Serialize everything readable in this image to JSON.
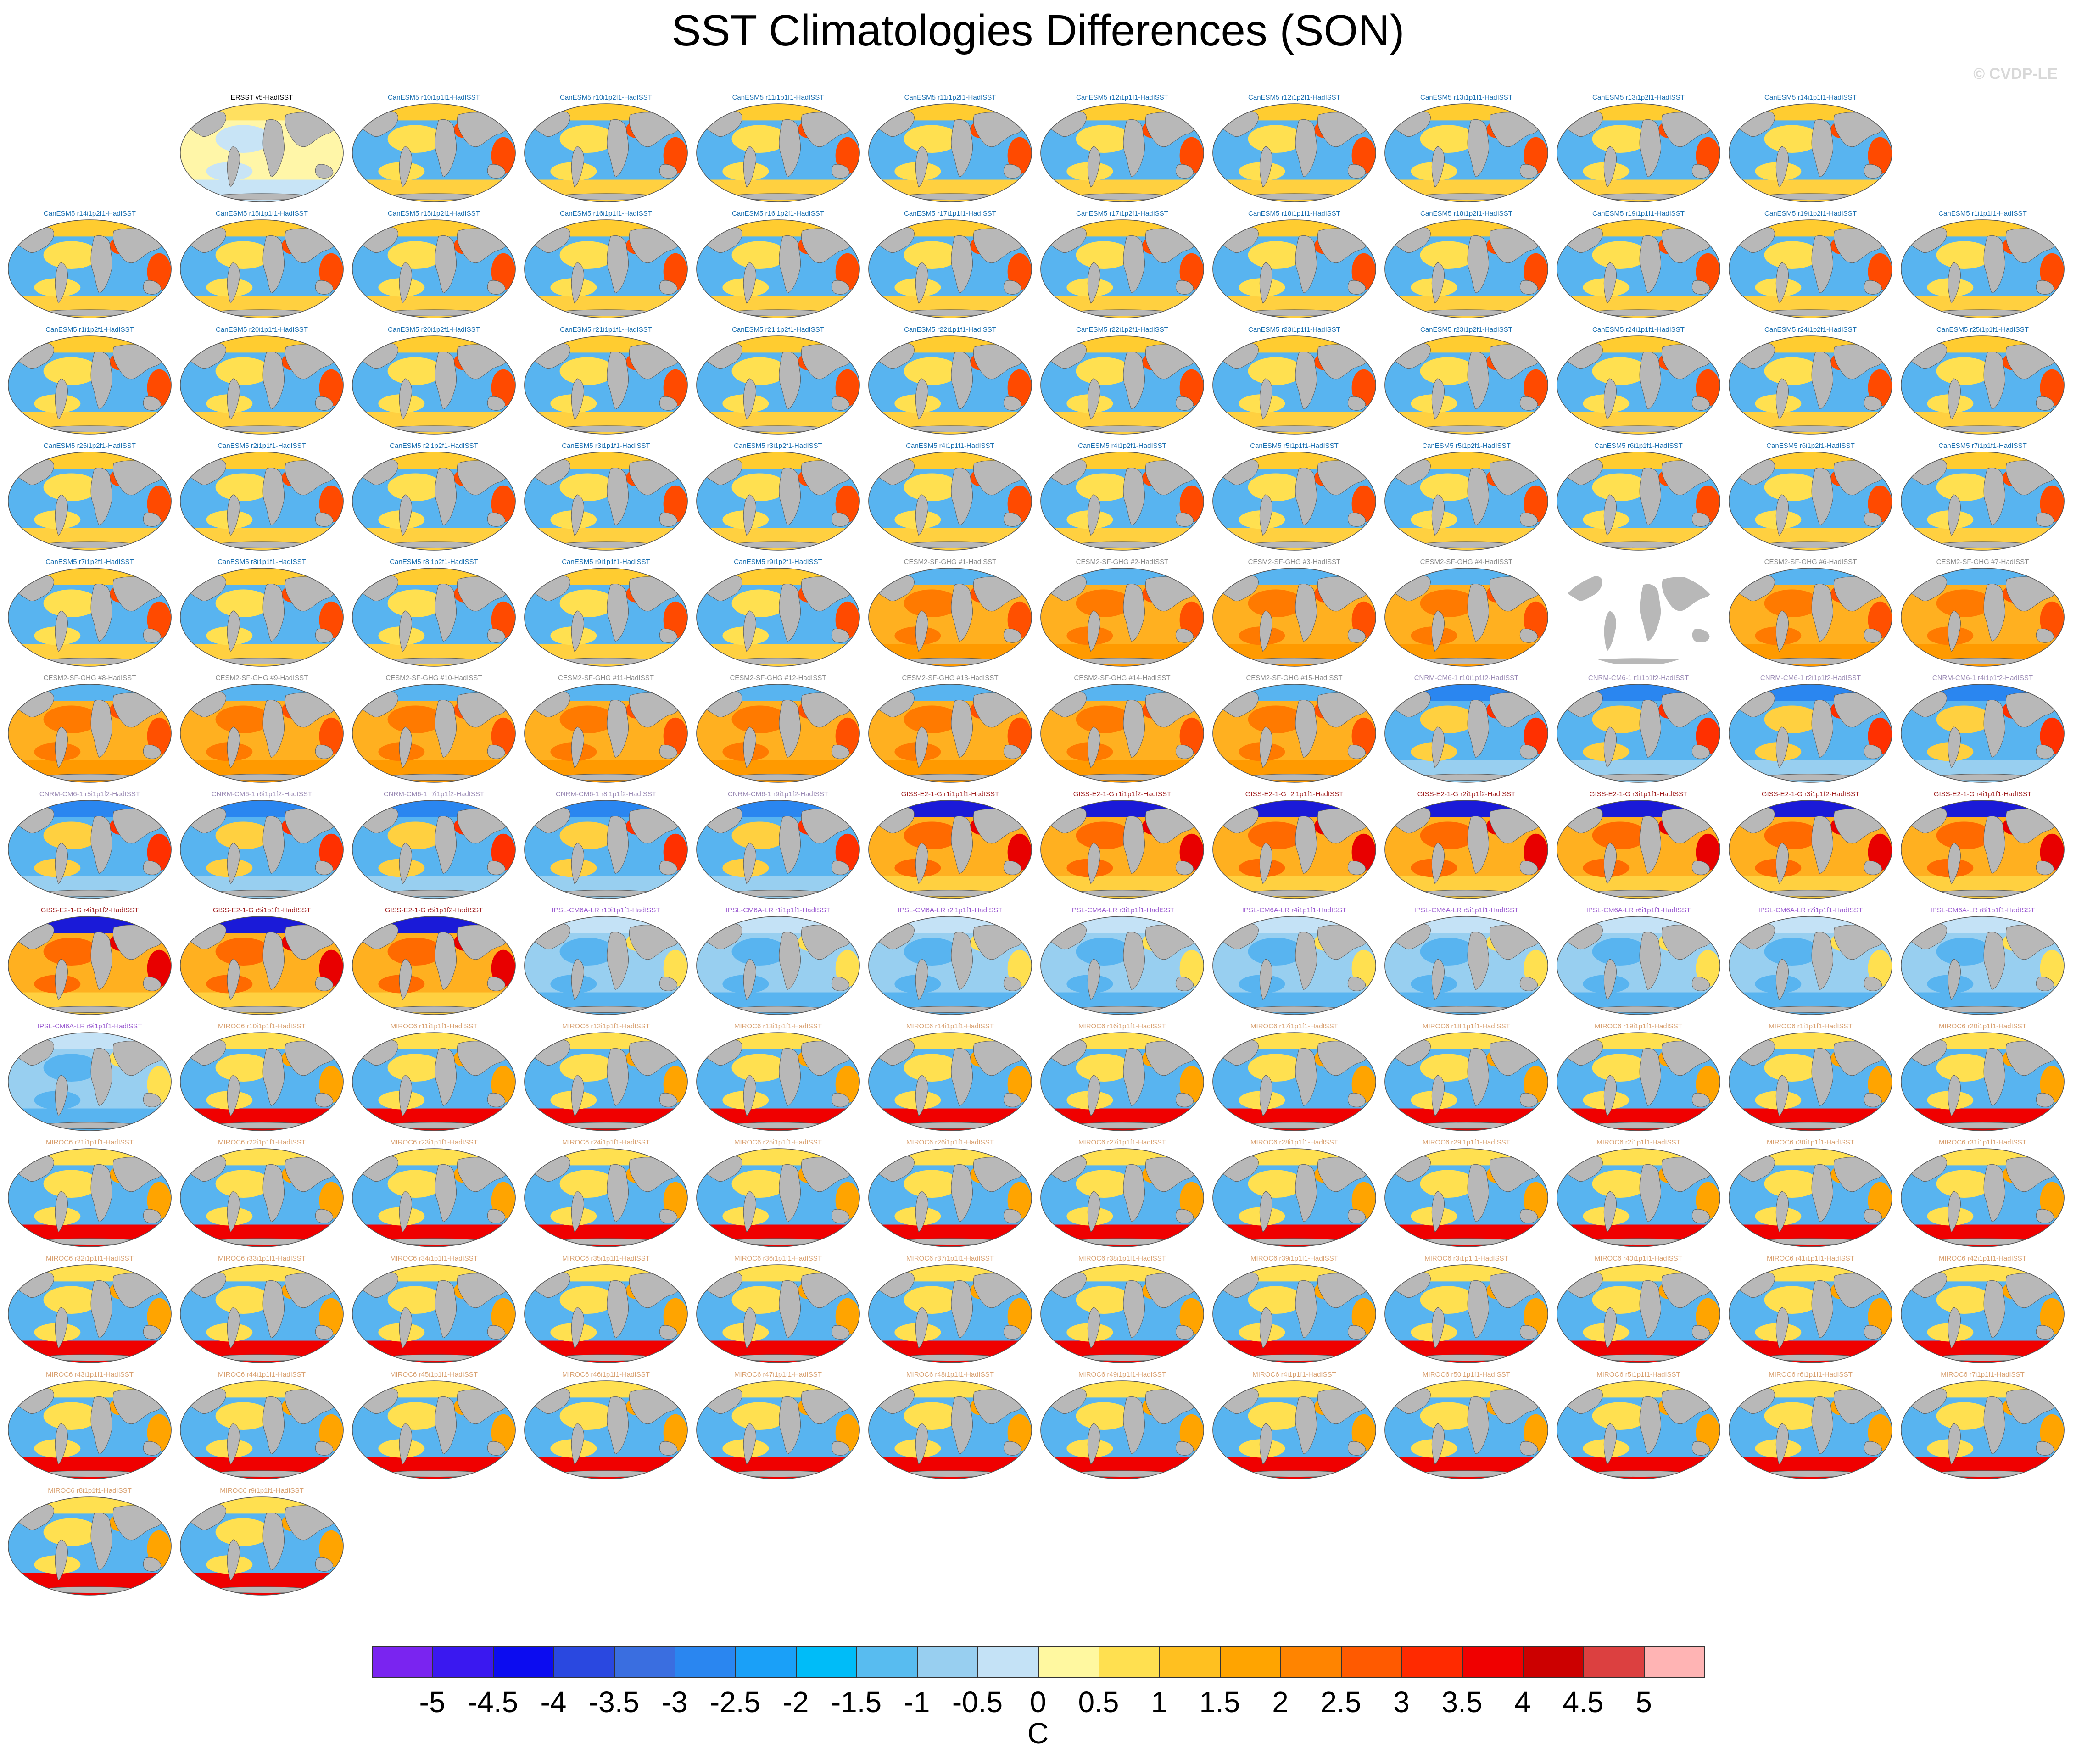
{
  "title": "SST Climatologies Differences (SON)",
  "watermark": "© CVDP-LE",
  "chart_data": {
    "type": "heatmap",
    "title": "SST Climatologies Differences (SON)",
    "units": "C",
    "description_variable": "Sea surface temperature climatology difference vs HadISST, Sep-Oct-Nov",
    "colorbar": {
      "ticks": [
        "-5",
        "-4.5",
        "-4",
        "-3.5",
        "-3",
        "-2.5",
        "-2",
        "-1.5",
        "-1",
        "-0.5",
        "0",
        "0.5",
        "1",
        "1.5",
        "2",
        "2.5",
        "3",
        "3.5",
        "4",
        "4.5",
        "5"
      ],
      "colors": [
        "#7a24f0",
        "#3a18f0",
        "#0c0cf0",
        "#2a48e0",
        "#3a6ee0",
        "#2a86f0",
        "#1aa0f8",
        "#00bcf8",
        "#58bcf0",
        "#98cff0",
        "#c4e2f6",
        "#fff8a0",
        "#ffe050",
        "#ffc020",
        "#ffa400",
        "#ff8400",
        "#ff5a00",
        "#ff2a00",
        "#f00000",
        "#cc0000",
        "#dc4040",
        "#ffb4b4"
      ]
    },
    "panels": [
      {
        "label": "ERSST v5-HadISST",
        "group": "obs"
      },
      {
        "label": "CanESM5 r10i1p1f1-HadISST",
        "group": "CanESM5"
      },
      {
        "label": "CanESM5 r10i1p2f1-HadISST",
        "group": "CanESM5"
      },
      {
        "label": "CanESM5 r11i1p1f1-HadISST",
        "group": "CanESM5"
      },
      {
        "label": "CanESM5 r11i1p2f1-HadISST",
        "group": "CanESM5"
      },
      {
        "label": "CanESM5 r12i1p1f1-HadISST",
        "group": "CanESM5"
      },
      {
        "label": "CanESM5 r12i1p2f1-HadISST",
        "group": "CanESM5"
      },
      {
        "label": "CanESM5 r13i1p1f1-HadISST",
        "group": "CanESM5"
      },
      {
        "label": "CanESM5 r13i1p2f1-HadISST",
        "group": "CanESM5"
      },
      {
        "label": "CanESM5 r14i1p1f1-HadISST",
        "group": "CanESM5"
      },
      {
        "label": "CanESM5 r14i1p2f1-HadISST",
        "group": "CanESM5"
      },
      {
        "label": "CanESM5 r15i1p1f1-HadISST",
        "group": "CanESM5"
      },
      {
        "label": "CanESM5 r15i1p2f1-HadISST",
        "group": "CanESM5"
      },
      {
        "label": "CanESM5 r16i1p1f1-HadISST",
        "group": "CanESM5"
      },
      {
        "label": "CanESM5 r16i1p2f1-HadISST",
        "group": "CanESM5"
      },
      {
        "label": "CanESM5 r17i1p1f1-HadISST",
        "group": "CanESM5"
      },
      {
        "label": "CanESM5 r17i1p2f1-HadISST",
        "group": "CanESM5"
      },
      {
        "label": "CanESM5 r18i1p1f1-HadISST",
        "group": "CanESM5"
      },
      {
        "label": "CanESM5 r18i1p2f1-HadISST",
        "group": "CanESM5"
      },
      {
        "label": "CanESM5 r19i1p1f1-HadISST",
        "group": "CanESM5"
      },
      {
        "label": "CanESM5 r19i1p2f1-HadISST",
        "group": "CanESM5"
      },
      {
        "label": "CanESM5 r1i1p1f1-HadISST",
        "group": "CanESM5"
      },
      {
        "label": "CanESM5 r1i1p2f1-HadISST",
        "group": "CanESM5"
      },
      {
        "label": "CanESM5 r20i1p1f1-HadISST",
        "group": "CanESM5"
      },
      {
        "label": "CanESM5 r20i1p2f1-HadISST",
        "group": "CanESM5"
      },
      {
        "label": "CanESM5 r21i1p1f1-HadISST",
        "group": "CanESM5"
      },
      {
        "label": "CanESM5 r21i1p2f1-HadISST",
        "group": "CanESM5"
      },
      {
        "label": "CanESM5 r22i1p1f1-HadISST",
        "group": "CanESM5"
      },
      {
        "label": "CanESM5 r22i1p2f1-HadISST",
        "group": "CanESM5"
      },
      {
        "label": "CanESM5 r23i1p1f1-HadISST",
        "group": "CanESM5"
      },
      {
        "label": "CanESM5 r23i1p2f1-HadISST",
        "group": "CanESM5"
      },
      {
        "label": "CanESM5 r24i1p1f1-HadISST",
        "group": "CanESM5"
      },
      {
        "label": "CanESM5 r24i1p2f1-HadISST",
        "group": "CanESM5"
      },
      {
        "label": "CanESM5 r25i1p1f1-HadISST",
        "group": "CanESM5"
      },
      {
        "label": "CanESM5 r25i1p2f1-HadISST",
        "group": "CanESM5"
      },
      {
        "label": "CanESM5 r2i1p1f1-HadISST",
        "group": "CanESM5"
      },
      {
        "label": "CanESM5 r2i1p2f1-HadISST",
        "group": "CanESM5"
      },
      {
        "label": "CanESM5 r3i1p1f1-HadISST",
        "group": "CanESM5"
      },
      {
        "label": "CanESM5 r3i1p2f1-HadISST",
        "group": "CanESM5"
      },
      {
        "label": "CanESM5 r4i1p1f1-HadISST",
        "group": "CanESM5"
      },
      {
        "label": "CanESM5 r4i1p2f1-HadISST",
        "group": "CanESM5"
      },
      {
        "label": "CanESM5 r5i1p1f1-HadISST",
        "group": "CanESM5"
      },
      {
        "label": "CanESM5 r5i1p2f1-HadISST",
        "group": "CanESM5"
      },
      {
        "label": "CanESM5 r6i1p1f1-HadISST",
        "group": "CanESM5"
      },
      {
        "label": "CanESM5 r6i1p2f1-HadISST",
        "group": "CanESM5"
      },
      {
        "label": "CanESM5 r7i1p1f1-HadISST",
        "group": "CanESM5"
      },
      {
        "label": "CanESM5 r7i1p2f1-HadISST",
        "group": "CanESM5"
      },
      {
        "label": "CanESM5 r8i1p1f1-HadISST",
        "group": "CanESM5"
      },
      {
        "label": "CanESM5 r8i1p2f1-HadISST",
        "group": "CanESM5"
      },
      {
        "label": "CanESM5 r9i1p1f1-HadISST",
        "group": "CanESM5"
      },
      {
        "label": "CanESM5 r9i1p2f1-HadISST",
        "group": "CanESM5"
      },
      {
        "label": "CESM2-SF-GHG #1-HadISST",
        "group": "CESM2"
      },
      {
        "label": "CESM2-SF-GHG #2-HadISST",
        "group": "CESM2"
      },
      {
        "label": "CESM2-SF-GHG #3-HadISST",
        "group": "CESM2"
      },
      {
        "label": "CESM2-SF-GHG #4-HadISST",
        "group": "CESM2"
      },
      {
        "label": "",
        "group": "blank"
      },
      {
        "label": "CESM2-SF-GHG #6-HadISST",
        "group": "CESM2"
      },
      {
        "label": "CESM2-SF-GHG #7-HadISST",
        "group": "CESM2"
      },
      {
        "label": "CESM2-SF-GHG #8-HadISST",
        "group": "CESM2"
      },
      {
        "label": "CESM2-SF-GHG #9-HadISST",
        "group": "CESM2"
      },
      {
        "label": "CESM2-SF-GHG #10-HadISST",
        "group": "CESM2"
      },
      {
        "label": "CESM2-SF-GHG #11-HadISST",
        "group": "CESM2"
      },
      {
        "label": "CESM2-SF-GHG #12-HadISST",
        "group": "CESM2"
      },
      {
        "label": "CESM2-SF-GHG #13-HadISST",
        "group": "CESM2"
      },
      {
        "label": "CESM2-SF-GHG #14-HadISST",
        "group": "CESM2"
      },
      {
        "label": "CESM2-SF-GHG #15-HadISST",
        "group": "CESM2"
      },
      {
        "label": "CNRM-CM6-1 r10i1p1f2-HadISST",
        "group": "CNRM"
      },
      {
        "label": "CNRM-CM6-1 r1i1p1f2-HadISST",
        "group": "CNRM"
      },
      {
        "label": "CNRM-CM6-1 r2i1p1f2-HadISST",
        "group": "CNRM"
      },
      {
        "label": "CNRM-CM6-1 r4i1p1f2-HadISST",
        "group": "CNRM"
      },
      {
        "label": "CNRM-CM6-1 r5i1p1f2-HadISST",
        "group": "CNRM"
      },
      {
        "label": "CNRM-CM6-1 r6i1p1f2-HadISST",
        "group": "CNRM"
      },
      {
        "label": "CNRM-CM6-1 r7i1p1f2-HadISST",
        "group": "CNRM"
      },
      {
        "label": "CNRM-CM6-1 r8i1p1f2-HadISST",
        "group": "CNRM"
      },
      {
        "label": "CNRM-CM6-1 r9i1p1f2-HadISST",
        "group": "CNRM"
      },
      {
        "label": "GISS-E2-1-G r1i1p1f1-HadISST",
        "group": "GISS"
      },
      {
        "label": "GISS-E2-1-G r1i1p1f2-HadISST",
        "group": "GISS"
      },
      {
        "label": "GISS-E2-1-G r2i1p1f1-HadISST",
        "group": "GISS"
      },
      {
        "label": "GISS-E2-1-G r2i1p1f2-HadISST",
        "group": "GISS"
      },
      {
        "label": "GISS-E2-1-G r3i1p1f1-HadISST",
        "group": "GISS"
      },
      {
        "label": "GISS-E2-1-G r3i1p1f2-HadISST",
        "group": "GISS"
      },
      {
        "label": "GISS-E2-1-G r4i1p1f1-HadISST",
        "group": "GISS"
      },
      {
        "label": "GISS-E2-1-G r4i1p1f2-HadISST",
        "group": "GISS"
      },
      {
        "label": "GISS-E2-1-G r5i1p1f1-HadISST",
        "group": "GISS"
      },
      {
        "label": "GISS-E2-1-G r5i1p1f2-HadISST",
        "group": "GISS"
      },
      {
        "label": "IPSL-CM6A-LR r10i1p1f1-HadISST",
        "group": "IPSL"
      },
      {
        "label": "IPSL-CM6A-LR r1i1p1f1-HadISST",
        "group": "IPSL"
      },
      {
        "label": "IPSL-CM6A-LR r2i1p1f1-HadISST",
        "group": "IPSL"
      },
      {
        "label": "IPSL-CM6A-LR r3i1p1f1-HadISST",
        "group": "IPSL"
      },
      {
        "label": "IPSL-CM6A-LR r4i1p1f1-HadISST",
        "group": "IPSL"
      },
      {
        "label": "IPSL-CM6A-LR r5i1p1f1-HadISST",
        "group": "IPSL"
      },
      {
        "label": "IPSL-CM6A-LR r6i1p1f1-HadISST",
        "group": "IPSL"
      },
      {
        "label": "IPSL-CM6A-LR r7i1p1f1-HadISST",
        "group": "IPSL"
      },
      {
        "label": "IPSL-CM6A-LR r8i1p1f1-HadISST",
        "group": "IPSL"
      },
      {
        "label": "IPSL-CM6A-LR r9i1p1f1-HadISST",
        "group": "IPSL"
      },
      {
        "label": "MIROC6 r10i1p1f1-HadISST",
        "group": "MIROC6"
      },
      {
        "label": "MIROC6 r11i1p1f1-HadISST",
        "group": "MIROC6"
      },
      {
        "label": "MIROC6 r12i1p1f1-HadISST",
        "group": "MIROC6"
      },
      {
        "label": "MIROC6 r13i1p1f1-HadISST",
        "group": "MIROC6"
      },
      {
        "label": "MIROC6 r14i1p1f1-HadISST",
        "group": "MIROC6"
      },
      {
        "label": "MIROC6 r16i1p1f1-HadISST",
        "group": "MIROC6"
      },
      {
        "label": "MIROC6 r17i1p1f1-HadISST",
        "group": "MIROC6"
      },
      {
        "label": "MIROC6 r18i1p1f1-HadISST",
        "group": "MIROC6"
      },
      {
        "label": "MIROC6 r19i1p1f1-HadISST",
        "group": "MIROC6"
      },
      {
        "label": "MIROC6 r1i1p1f1-HadISST",
        "group": "MIROC6"
      },
      {
        "label": "MIROC6 r20i1p1f1-HadISST",
        "group": "MIROC6"
      },
      {
        "label": "MIROC6 r21i1p1f1-HadISST",
        "group": "MIROC6"
      },
      {
        "label": "MIROC6 r22i1p1f1-HadISST",
        "group": "MIROC6"
      },
      {
        "label": "MIROC6 r23i1p1f1-HadISST",
        "group": "MIROC6"
      },
      {
        "label": "MIROC6 r24i1p1f1-HadISST",
        "group": "MIROC6"
      },
      {
        "label": "MIROC6 r25i1p1f1-HadISST",
        "group": "MIROC6"
      },
      {
        "label": "MIROC6 r26i1p1f1-HadISST",
        "group": "MIROC6"
      },
      {
        "label": "MIROC6 r27i1p1f1-HadISST",
        "group": "MIROC6"
      },
      {
        "label": "MIROC6 r28i1p1f1-HadISST",
        "group": "MIROC6"
      },
      {
        "label": "MIROC6 r29i1p1f1-HadISST",
        "group": "MIROC6"
      },
      {
        "label": "MIROC6 r2i1p1f1-HadISST",
        "group": "MIROC6"
      },
      {
        "label": "MIROC6 r30i1p1f1-HadISST",
        "group": "MIROC6"
      },
      {
        "label": "MIROC6 r31i1p1f1-HadISST",
        "group": "MIROC6"
      },
      {
        "label": "MIROC6 r32i1p1f1-HadISST",
        "group": "MIROC6"
      },
      {
        "label": "MIROC6 r33i1p1f1-HadISST",
        "group": "MIROC6"
      },
      {
        "label": "MIROC6 r34i1p1f1-HadISST",
        "group": "MIROC6"
      },
      {
        "label": "MIROC6 r35i1p1f1-HadISST",
        "group": "MIROC6"
      },
      {
        "label": "MIROC6 r36i1p1f1-HadISST",
        "group": "MIROC6"
      },
      {
        "label": "MIROC6 r37i1p1f1-HadISST",
        "group": "MIROC6"
      },
      {
        "label": "MIROC6 r38i1p1f1-HadISST",
        "group": "MIROC6"
      },
      {
        "label": "MIROC6 r39i1p1f1-HadISST",
        "group": "MIROC6"
      },
      {
        "label": "MIROC6 r3i1p1f1-HadISST",
        "group": "MIROC6"
      },
      {
        "label": "MIROC6 r40i1p1f1-HadISST",
        "group": "MIROC6"
      },
      {
        "label": "MIROC6 r41i1p1f1-HadISST",
        "group": "MIROC6"
      },
      {
        "label": "MIROC6 r42i1p1f1-HadISST",
        "group": "MIROC6"
      },
      {
        "label": "MIROC6 r43i1p1f1-HadISST",
        "group": "MIROC6"
      },
      {
        "label": "MIROC6 r44i1p1f1-HadISST",
        "group": "MIROC6"
      },
      {
        "label": "MIROC6 r45i1p1f1-HadISST",
        "group": "MIROC6"
      },
      {
        "label": "MIROC6 r46i1p1f1-HadISST",
        "group": "MIROC6"
      },
      {
        "label": "MIROC6 r47i1p1f1-HadISST",
        "group": "MIROC6"
      },
      {
        "label": "MIROC6 r48i1p1f1-HadISST",
        "group": "MIROC6"
      },
      {
        "label": "MIROC6 r49i1p1f1-HadISST",
        "group": "MIROC6"
      },
      {
        "label": "MIROC6 r4i1p1f1-HadISST",
        "group": "MIROC6"
      },
      {
        "label": "MIROC6 r50i1p1f1-HadISST",
        "group": "MIROC6"
      },
      {
        "label": "MIROC6 r5i1p1f1-HadISST",
        "group": "MIROC6"
      },
      {
        "label": "MIROC6 r6i1p1f1-HadISST",
        "group": "MIROC6"
      },
      {
        "label": "MIROC6 r7i1p1f1-HadISST",
        "group": "MIROC6"
      },
      {
        "label": "MIROC6 r8i1p1f1-HadISST",
        "group": "MIROC6"
      },
      {
        "label": "MIROC6 r9i1p1f1-HadISST",
        "group": "MIROC6"
      }
    ],
    "group_styles": {
      "obs": {
        "label_color": "#000000",
        "ocean": "#fff6a8",
        "blob": "#c8e4f6",
        "band_n": "#ffe060",
        "band_s": "#c8e4f6",
        "east": "#fff6a8"
      },
      "CanESM5": {
        "label_color": "#1a6fb0",
        "ocean": "#58b4f0",
        "blob": "#ffe050",
        "band_n": "#ffcc30",
        "band_s": "#ffd040",
        "east": "#ff4a00"
      },
      "CESM2": {
        "label_color": "#8a8a8a",
        "ocean": "#ffb020",
        "blob": "#ff7a00",
        "band_n": "#58b4f0",
        "band_s": "#ff9a00",
        "east": "#ff5000"
      },
      "CNRM": {
        "label_color": "#9a8ab4",
        "ocean": "#58b4f0",
        "blob": "#ffd040",
        "band_n": "#2a86f0",
        "band_s": "#98cff0",
        "east": "#ff3000"
      },
      "GISS": {
        "label_color": "#a02020",
        "ocean": "#ffb020",
        "blob": "#ff6a00",
        "band_n": "#1a1ad8",
        "band_s": "#ffd040",
        "east": "#e80000"
      },
      "IPSL": {
        "label_color": "#9a5ad0",
        "ocean": "#98cff0",
        "blob": "#58b4f0",
        "band_n": "#c4e2f6",
        "band_s": "#58b4f0",
        "east": "#ffe050"
      },
      "MIROC6": {
        "label_color": "#d8a070",
        "ocean": "#58b4f0",
        "blob": "#ffe050",
        "band_n": "#ffe050",
        "band_s": "#f00000",
        "east": "#ffa400"
      },
      "blank": {
        "label_color": "#ffffff",
        "ocean": "#ffffff",
        "blob": "#ffffff",
        "band_n": "#ffffff",
        "band_s": "#ffffff",
        "east": "#ffffff"
      }
    }
  }
}
